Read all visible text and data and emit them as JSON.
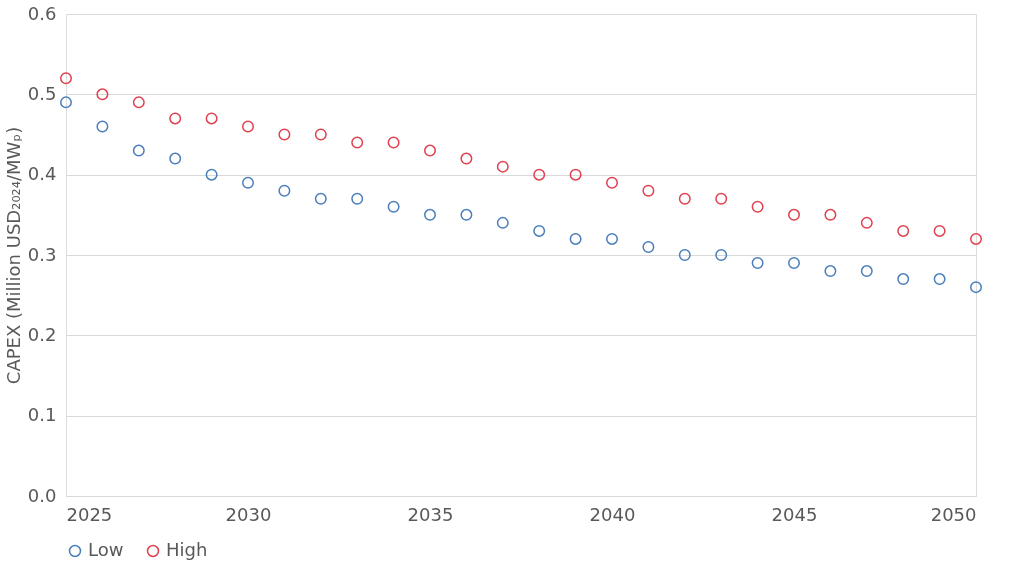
{
  "chart_data": {
    "type": "scatter",
    "ylabel": "CAPEX (Million USD₂₀₂₄/MWₚ)",
    "x": [
      2025,
      2026,
      2027,
      2028,
      2029,
      2030,
      2031,
      2032,
      2033,
      2034,
      2035,
      2036,
      2037,
      2038,
      2039,
      2040,
      2041,
      2042,
      2043,
      2044,
      2045,
      2046,
      2047,
      2048,
      2049,
      2050
    ],
    "series": [
      {
        "name": "Low",
        "color": "#4a7ebb",
        "values": [
          0.49,
          0.46,
          0.43,
          0.42,
          0.4,
          0.39,
          0.38,
          0.37,
          0.37,
          0.36,
          0.35,
          0.35,
          0.34,
          0.33,
          0.32,
          0.32,
          0.31,
          0.3,
          0.3,
          0.29,
          0.29,
          0.28,
          0.28,
          0.27,
          0.27,
          0.26
        ]
      },
      {
        "name": "High",
        "color": "#e0404f",
        "values": [
          0.52,
          0.5,
          0.49,
          0.47,
          0.47,
          0.46,
          0.45,
          0.45,
          0.44,
          0.44,
          0.43,
          0.42,
          0.41,
          0.4,
          0.4,
          0.39,
          0.38,
          0.37,
          0.37,
          0.36,
          0.35,
          0.35,
          0.34,
          0.33,
          0.33,
          0.32
        ]
      }
    ],
    "xlim": [
      2025,
      2050
    ],
    "xticks": [
      2025,
      2030,
      2035,
      2040,
      2045,
      2050
    ],
    "ylim": [
      0,
      0.6
    ],
    "yticks": [
      {
        "value": 0,
        "label": "0.0"
      },
      0.1,
      0.2,
      0.3,
      0.4,
      0.5,
      0.6
    ],
    "grid": "y",
    "legend": "bottom",
    "marker": "circle"
  }
}
